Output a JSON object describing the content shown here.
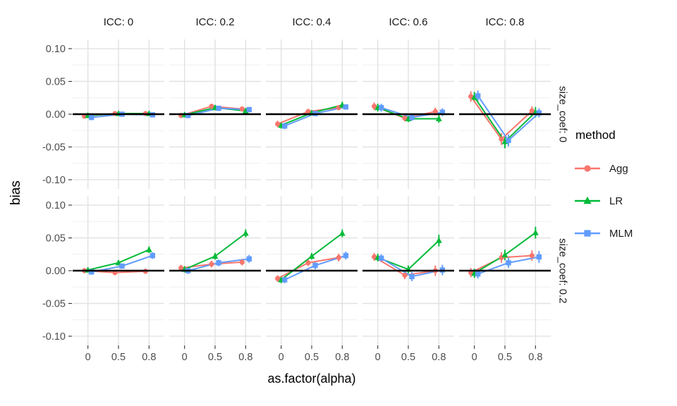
{
  "chart_data": {
    "type": "line",
    "title": "",
    "xlabel": "as.factor(alpha)",
    "ylabel": "bias",
    "x_categories": [
      "0",
      "0.5",
      "0.8"
    ],
    "yticks": [
      0.1,
      0.05,
      0.0,
      -0.05,
      -0.1
    ],
    "ytick_labels": [
      "0.10",
      "0.05",
      "0.00",
      "-0.05",
      "-0.10"
    ],
    "ylim": [
      -0.114,
      0.114
    ],
    "grid": "on",
    "zero_line": true,
    "legend_position": "right",
    "legend_title": "method",
    "col_facets": [
      "ICC: 0",
      "ICC: 0.2",
      "ICC: 0.4",
      "ICC: 0.6",
      "ICC: 0.8"
    ],
    "row_facets": [
      "size_coef: 0",
      "size_coef: 0.2"
    ],
    "series": [
      {
        "name": "Agg",
        "color": "#F8766D",
        "marker": "circle"
      },
      {
        "name": "LR",
        "color": "#00BA38",
        "marker": "triangle"
      },
      {
        "name": "MLM",
        "color": "#619CFF",
        "marker": "square"
      }
    ],
    "panels": [
      {
        "facet_row": "size_coef: 0",
        "facet_col": "ICC: 0",
        "series": {
          "Agg": {
            "y": [
              -0.003,
              0.001,
              0.001
            ],
            "err": [
              0.004,
              0.003,
              0.003
            ]
          },
          "LR": {
            "y": [
              -0.002,
              0.001,
              0.001
            ],
            "err": [
              0.004,
              0.003,
              0.003
            ]
          },
          "MLM": {
            "y": [
              -0.005,
              0.0,
              -0.001
            ],
            "err": [
              0.004,
              0.003,
              0.003
            ]
          }
        }
      },
      {
        "facet_row": "size_coef: 0",
        "facet_col": "ICC: 0.2",
        "series": {
          "Agg": {
            "y": [
              -0.002,
              0.012,
              0.008
            ],
            "err": [
              0.004,
              0.004,
              0.004
            ]
          },
          "LR": {
            "y": [
              -0.001,
              0.01,
              0.005
            ],
            "err": [
              0.004,
              0.004,
              0.004
            ]
          },
          "MLM": {
            "y": [
              -0.002,
              0.009,
              0.007
            ],
            "err": [
              0.004,
              0.004,
              0.004
            ]
          }
        }
      },
      {
        "facet_row": "size_coef: 0",
        "facet_col": "ICC: 0.4",
        "series": {
          "Agg": {
            "y": [
              -0.015,
              0.004,
              0.01
            ],
            "err": [
              0.005,
              0.004,
              0.004
            ]
          },
          "LR": {
            "y": [
              -0.017,
              0.002,
              0.014
            ],
            "err": [
              0.005,
              0.004,
              0.005
            ]
          },
          "MLM": {
            "y": [
              -0.018,
              0.001,
              0.011
            ],
            "err": [
              0.005,
              0.004,
              0.004
            ]
          }
        }
      },
      {
        "facet_row": "size_coef: 0",
        "facet_col": "ICC: 0.6",
        "series": {
          "Agg": {
            "y": [
              0.012,
              -0.006,
              0.004
            ],
            "err": [
              0.006,
              0.005,
              0.006
            ]
          },
          "LR": {
            "y": [
              0.01,
              -0.007,
              -0.007
            ],
            "err": [
              0.006,
              0.005,
              0.006
            ]
          },
          "MLM": {
            "y": [
              0.01,
              -0.005,
              0.003
            ],
            "err": [
              0.006,
              0.005,
              0.006
            ]
          }
        }
      },
      {
        "facet_row": "size_coef: 0",
        "facet_col": "ICC: 0.8",
        "series": {
          "Agg": {
            "y": [
              0.027,
              -0.038,
              0.005
            ],
            "err": [
              0.008,
              0.009,
              0.007
            ]
          },
          "LR": {
            "y": [
              0.026,
              -0.042,
              0.003
            ],
            "err": [
              0.008,
              0.01,
              0.008
            ]
          },
          "MLM": {
            "y": [
              0.028,
              -0.04,
              0.002
            ],
            "err": [
              0.008,
              0.009,
              0.007
            ]
          }
        }
      },
      {
        "facet_row": "size_coef: 0.2",
        "facet_col": "ICC: 0",
        "series": {
          "Agg": {
            "y": [
              0.0,
              -0.003,
              -0.001
            ],
            "err": [
              0.004,
              0.004,
              0.004
            ]
          },
          "LR": {
            "y": [
              0.001,
              0.012,
              0.032
            ],
            "err": [
              0.004,
              0.004,
              0.005
            ]
          },
          "MLM": {
            "y": [
              -0.002,
              0.007,
              0.023
            ],
            "err": [
              0.004,
              0.004,
              0.005
            ]
          }
        }
      },
      {
        "facet_row": "size_coef: 0.2",
        "facet_col": "ICC: 0.2",
        "series": {
          "Agg": {
            "y": [
              0.004,
              0.01,
              0.013
            ],
            "err": [
              0.005,
              0.005,
              0.005
            ]
          },
          "LR": {
            "y": [
              0.002,
              0.022,
              0.057
            ],
            "err": [
              0.005,
              0.005,
              0.006
            ]
          },
          "MLM": {
            "y": [
              0.0,
              0.012,
              0.018
            ],
            "err": [
              0.005,
              0.005,
              0.006
            ]
          }
        }
      },
      {
        "facet_row": "size_coef: 0.2",
        "facet_col": "ICC: 0.4",
        "series": {
          "Agg": {
            "y": [
              -0.012,
              0.012,
              0.02
            ],
            "err": [
              0.005,
              0.005,
              0.006
            ]
          },
          "LR": {
            "y": [
              -0.014,
              0.022,
              0.057
            ],
            "err": [
              0.005,
              0.005,
              0.006
            ]
          },
          "MLM": {
            "y": [
              -0.014,
              0.008,
              0.023
            ],
            "err": [
              0.005,
              0.006,
              0.006
            ]
          }
        }
      },
      {
        "facet_row": "size_coef: 0.2",
        "facet_col": "ICC: 0.6",
        "series": {
          "Agg": {
            "y": [
              0.021,
              -0.007,
              0.0
            ],
            "err": [
              0.006,
              0.006,
              0.008
            ]
          },
          "LR": {
            "y": [
              0.02,
              0.002,
              0.046
            ],
            "err": [
              0.006,
              0.006,
              0.009
            ]
          },
          "MLM": {
            "y": [
              0.019,
              -0.009,
              0.001
            ],
            "err": [
              0.006,
              0.007,
              0.008
            ]
          }
        }
      },
      {
        "facet_row": "size_coef: 0.2",
        "facet_col": "ICC: 0.8",
        "series": {
          "Agg": {
            "y": [
              -0.003,
              0.02,
              0.023
            ],
            "err": [
              0.007,
              0.008,
              0.008
            ]
          },
          "LR": {
            "y": [
              -0.004,
              0.024,
              0.058
            ],
            "err": [
              0.007,
              0.008,
              0.009
            ]
          },
          "MLM": {
            "y": [
              -0.005,
              0.012,
              0.021
            ],
            "err": [
              0.007,
              0.008,
              0.009
            ]
          }
        }
      }
    ],
    "colors": {
      "grid_major": "#E2E2E2",
      "grid_minor": "#EFEFEF",
      "zero_line": "#000000",
      "tick": "#333333",
      "tick_label": "#4D4D4D",
      "strip_text": "#1A1A1A"
    }
  }
}
